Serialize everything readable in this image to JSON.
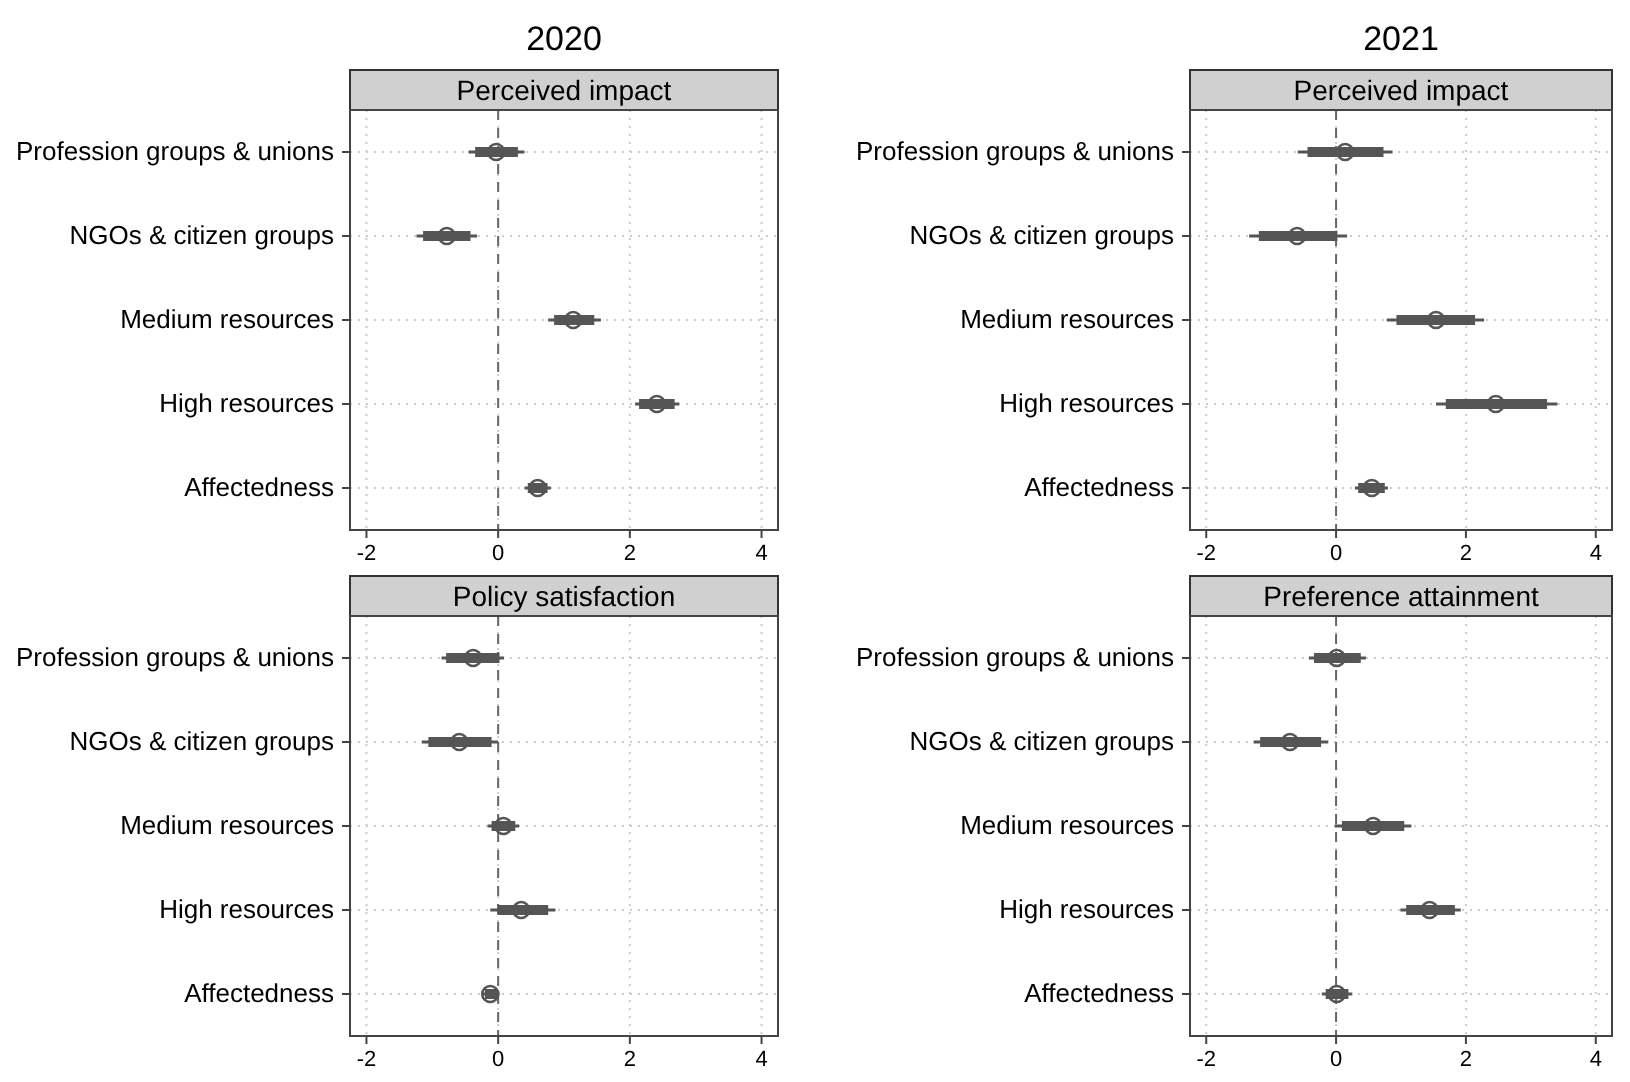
{
  "chart_data": [
    {
      "type": "box",
      "title": "2020",
      "subtitle": "Perceived impact",
      "orientation": "horizontal",
      "categories": [
        "Profession groups & unions",
        "NGOs & citizen groups",
        "Medium resources",
        "High resources",
        "Affectedness"
      ],
      "xlim": [
        -2.25,
        4.25
      ],
      "xticks": [
        -2,
        0,
        2,
        4
      ],
      "grid": true,
      "marker": "circle",
      "ref_lines": [
        {
          "axis": "x",
          "value": 0,
          "line_style": "dashed",
          "color": "#666666"
        }
      ],
      "series": [
        {
          "color": "#555555",
          "boxes": [
            {
              "low": -0.45,
              "q1": -0.35,
              "median": -0.03,
              "q3": 0.3,
              "high": 0.4
            },
            {
              "low": -1.24,
              "q1": -1.14,
              "median": -0.78,
              "q3": -0.42,
              "high": -0.32
            },
            {
              "low": 0.76,
              "q1": 0.85,
              "median": 1.14,
              "q3": 1.46,
              "high": 1.56
            },
            {
              "low": 2.08,
              "q1": 2.14,
              "median": 2.41,
              "q3": 2.68,
              "high": 2.75
            },
            {
              "low": 0.4,
              "q1": 0.45,
              "median": 0.6,
              "q3": 0.75,
              "high": 0.8
            }
          ]
        }
      ]
    },
    {
      "type": "box",
      "title": "2021",
      "subtitle": "Perceived impact",
      "orientation": "horizontal",
      "categories": [
        "Profession groups & unions",
        "NGOs & citizen groups",
        "Medium resources",
        "High resources",
        "Affectedness"
      ],
      "xlim": [
        -2.25,
        4.25
      ],
      "xticks": [
        -2,
        0,
        2,
        4
      ],
      "grid": true,
      "marker": "circle",
      "ref_lines": [
        {
          "axis": "x",
          "value": 0,
          "line_style": "dashed",
          "color": "#666666"
        }
      ],
      "series": [
        {
          "color": "#555555",
          "boxes": [
            {
              "low": -0.59,
              "q1": -0.44,
              "median": 0.14,
              "q3": 0.73,
              "high": 0.87
            },
            {
              "low": -1.34,
              "q1": -1.19,
              "median": -0.6,
              "q3": 0.02,
              "high": 0.17
            },
            {
              "low": 0.78,
              "q1": 0.93,
              "median": 1.54,
              "q3": 2.14,
              "high": 2.28
            },
            {
              "low": 1.54,
              "q1": 1.69,
              "median": 2.46,
              "q3": 3.25,
              "high": 3.41
            },
            {
              "low": 0.29,
              "q1": 0.34,
              "median": 0.55,
              "q3": 0.75,
              "high": 0.8
            }
          ]
        }
      ]
    },
    {
      "type": "box",
      "subtitle": "Policy satisfaction",
      "orientation": "horizontal",
      "categories": [
        "Profession groups & unions",
        "NGOs & citizen groups",
        "Medium resources",
        "High resources",
        "Affectedness"
      ],
      "xlim": [
        -2.25,
        4.25
      ],
      "xticks": [
        -2,
        0,
        2,
        4
      ],
      "grid": true,
      "marker": "circle",
      "ref_lines": [
        {
          "axis": "x",
          "value": 0,
          "line_style": "dashed",
          "color": "#666666"
        }
      ],
      "series": [
        {
          "color": "#555555",
          "boxes": [
            {
              "low": -0.86,
              "q1": -0.79,
              "median": -0.38,
              "q3": 0.02,
              "high": 0.09
            },
            {
              "low": -1.16,
              "q1": -1.06,
              "median": -0.59,
              "q3": -0.1,
              "high": 0.0
            },
            {
              "low": -0.16,
              "q1": -0.1,
              "median": 0.08,
              "q3": 0.26,
              "high": 0.32
            },
            {
              "low": -0.12,
              "q1": -0.01,
              "median": 0.35,
              "q3": 0.76,
              "high": 0.87
            },
            {
              "low": -0.23,
              "q1": -0.2,
              "median": -0.12,
              "q3": -0.01,
              "high": 0.02
            }
          ]
        }
      ]
    },
    {
      "type": "box",
      "subtitle": "Preference attainment",
      "orientation": "horizontal",
      "categories": [
        "Profession groups & unions",
        "NGOs & citizen groups",
        "Medium resources",
        "High resources",
        "Affectedness"
      ],
      "xlim": [
        -2.25,
        4.25
      ],
      "xticks": [
        -2,
        0,
        2,
        4
      ],
      "grid": true,
      "marker": "circle",
      "ref_lines": [
        {
          "axis": "x",
          "value": 0,
          "line_style": "dashed",
          "color": "#666666"
        }
      ],
      "series": [
        {
          "color": "#555555",
          "boxes": [
            {
              "low": -0.42,
              "q1": -0.34,
              "median": 0.01,
              "q3": 0.38,
              "high": 0.46
            },
            {
              "low": -1.27,
              "q1": -1.17,
              "median": -0.71,
              "q3": -0.23,
              "high": -0.12
            },
            {
              "low": -0.02,
              "q1": 0.09,
              "median": 0.57,
              "q3": 1.05,
              "high": 1.16
            },
            {
              "low": 0.99,
              "q1": 1.08,
              "median": 1.44,
              "q3": 1.83,
              "high": 1.92
            },
            {
              "low": -0.22,
              "q1": -0.16,
              "median": 0.01,
              "q3": 0.19,
              "high": 0.25
            }
          ]
        }
      ]
    }
  ]
}
